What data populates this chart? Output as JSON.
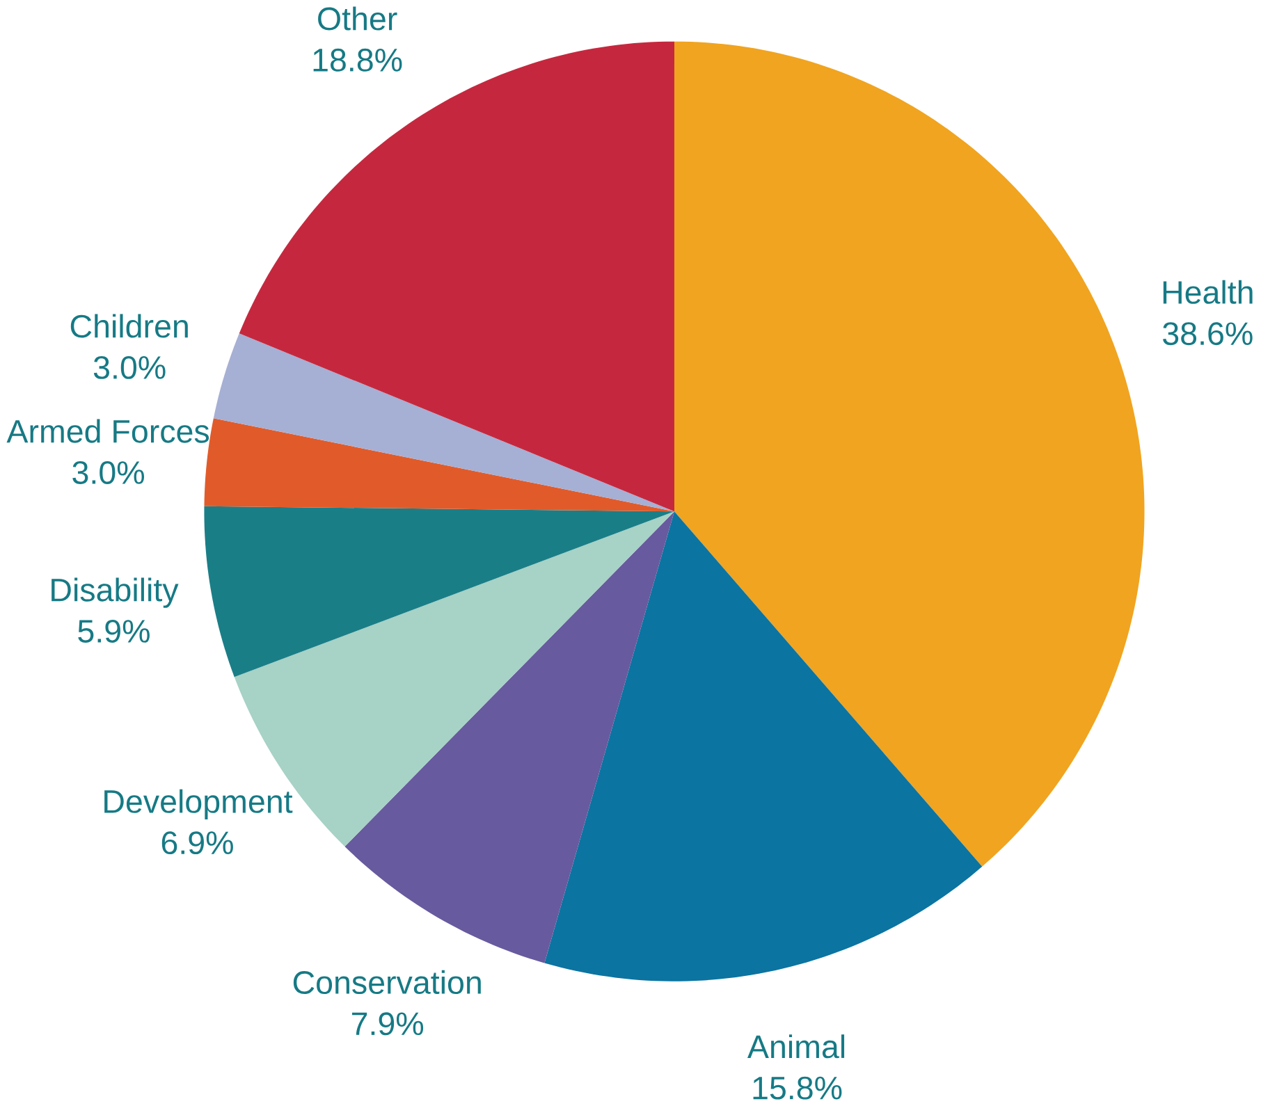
{
  "chart_data": {
    "type": "pie",
    "categories": [
      "Health",
      "Animal",
      "Conservation",
      "Development",
      "Disability",
      "Armed Forces",
      "Children",
      "Other"
    ],
    "values": [
      38.6,
      15.8,
      7.9,
      6.9,
      5.9,
      3.0,
      3.0,
      18.8
    ],
    "value_labels": [
      "38.6%",
      "15.8%",
      "7.9%",
      "6.9%",
      "5.9%",
      "3.0%",
      "3.0%",
      "18.8%"
    ],
    "colors": [
      "#f0a420",
      "#0b74a1",
      "#685a9e",
      "#a7d2c6",
      "#1a7e87",
      "#e15b2a",
      "#a6afd4",
      "#c5283e"
    ]
  }
}
